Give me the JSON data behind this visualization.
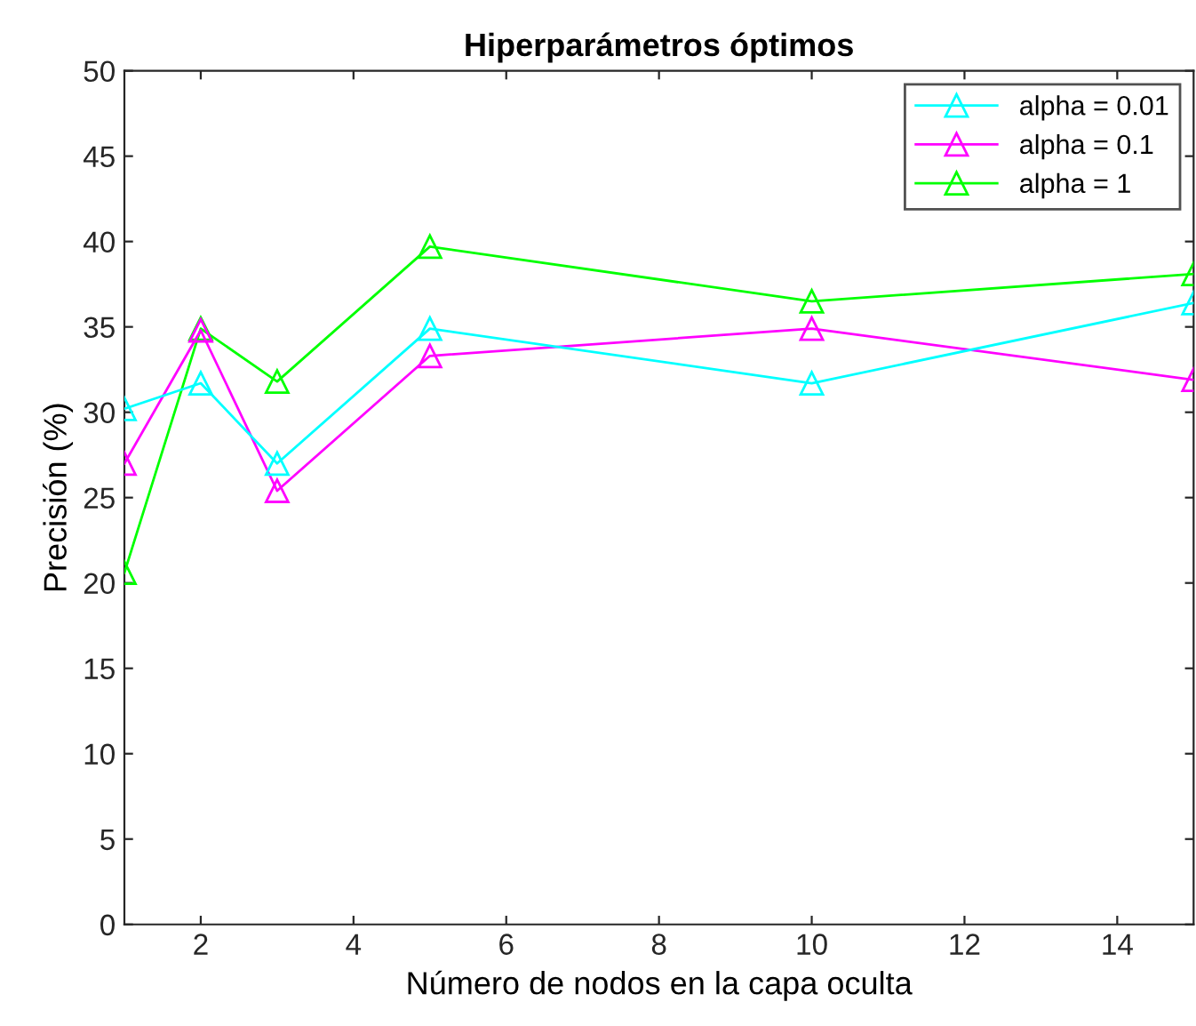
{
  "chart_data": {
    "type": "line",
    "title": "Hiperparámetros óptimos",
    "xlabel": "Número de nodos en la capa oculta",
    "ylabel": "Precisión (%)",
    "x": [
      1,
      2,
      3,
      5,
      10,
      15
    ],
    "series": [
      {
        "name": "alpha = 0.01",
        "color": "#00ffff",
        "values": [
          30.2,
          31.7,
          27.0,
          34.9,
          31.7,
          36.4
        ]
      },
      {
        "name": "alpha = 0.1",
        "color": "#ff00ff",
        "values": [
          27.0,
          34.8,
          25.4,
          33.3,
          34.9,
          31.9
        ]
      },
      {
        "name": "alpha = 1",
        "color": "#00ff00",
        "values": [
          20.6,
          34.9,
          31.8,
          39.7,
          36.5,
          38.1
        ]
      }
    ],
    "xlim": [
      1,
      15
    ],
    "xticks": [
      2,
      4,
      6,
      8,
      10,
      12,
      14
    ],
    "ylim": [
      0,
      50
    ],
    "yticks": [
      0,
      5,
      10,
      15,
      20,
      25,
      30,
      35,
      40,
      45,
      50
    ],
    "grid": false,
    "legend": "top right",
    "marker": "triangle",
    "line_style": "solid"
  }
}
